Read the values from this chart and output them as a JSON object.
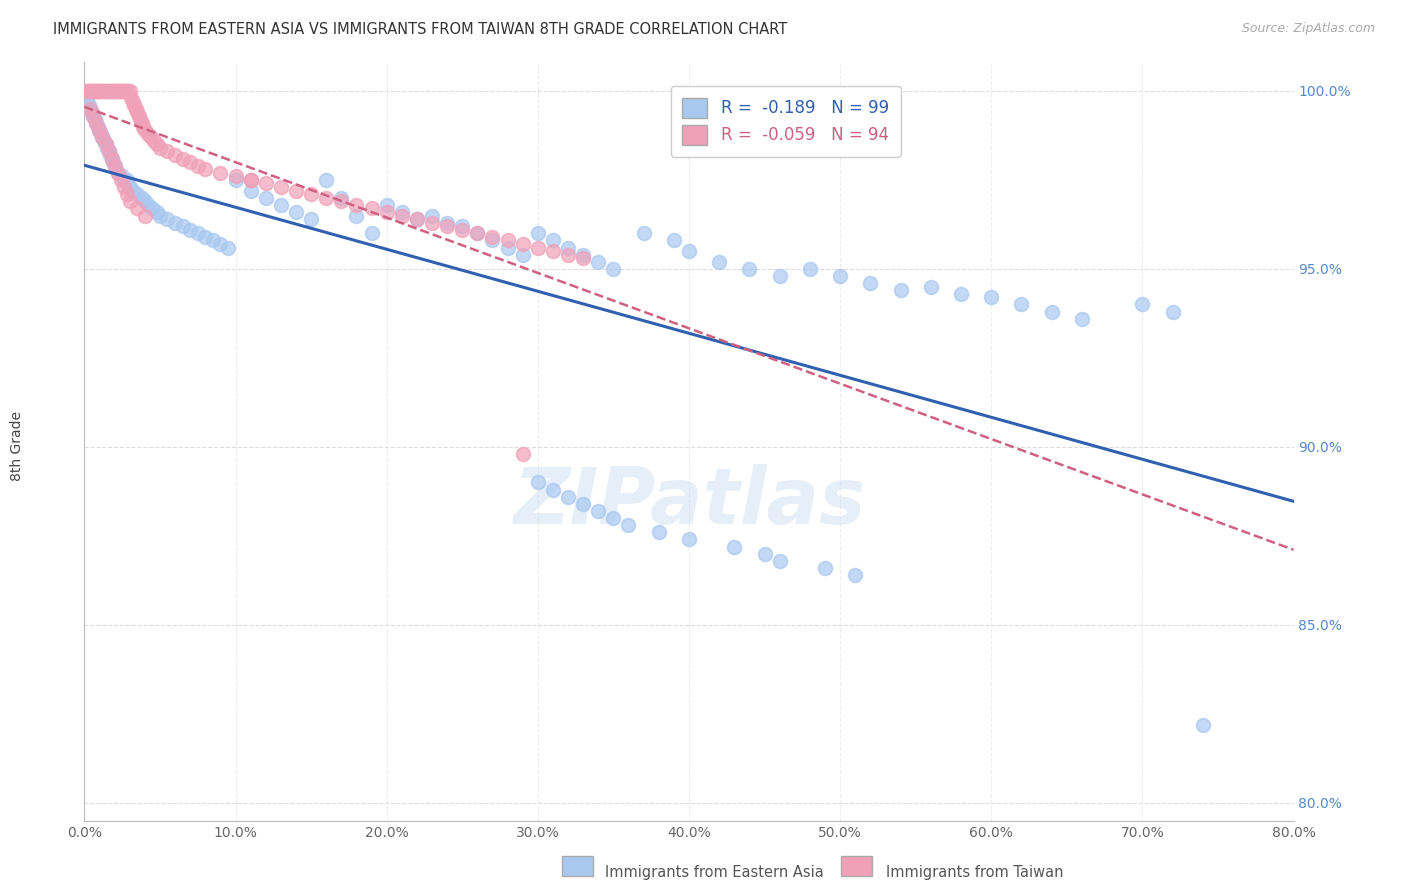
{
  "title": "IMMIGRANTS FROM EASTERN ASIA VS IMMIGRANTS FROM TAIWAN 8TH GRADE CORRELATION CHART",
  "source": "Source: ZipAtlas.com",
  "ylabel": "8th Grade",
  "legend_labels": [
    "Immigrants from Eastern Asia",
    "Immigrants from Taiwan"
  ],
  "r_eastern_asia": -0.189,
  "n_eastern_asia": 99,
  "r_taiwan": -0.059,
  "n_taiwan": 94,
  "xlim": [
    0.0,
    0.8
  ],
  "ylim": [
    0.795,
    1.008
  ],
  "yticks": [
    0.8,
    0.85,
    0.9,
    0.95,
    1.0
  ],
  "xticks": [
    0.0,
    0.1,
    0.2,
    0.3,
    0.4,
    0.5,
    0.6,
    0.7,
    0.8
  ],
  "blue_color": "#A8C8F0",
  "pink_color": "#F0A0B8",
  "trend_blue": "#3060B0",
  "trend_pink": "#D06080",
  "background": "#FFFFFF",
  "watermark": "ZIPatlas",
  "grid_color": "#DDDDDD",
  "blue_scatter_x": [
    0.002,
    0.003,
    0.004,
    0.005,
    0.006,
    0.007,
    0.008,
    0.009,
    0.01,
    0.011,
    0.012,
    0.013,
    0.014,
    0.015,
    0.016,
    0.017,
    0.018,
    0.019,
    0.02,
    0.022,
    0.025,
    0.028,
    0.03,
    0.032,
    0.035,
    0.038,
    0.04,
    0.042,
    0.045,
    0.048,
    0.05,
    0.055,
    0.06,
    0.065,
    0.07,
    0.075,
    0.08,
    0.085,
    0.09,
    0.095,
    0.1,
    0.11,
    0.12,
    0.13,
    0.14,
    0.15,
    0.16,
    0.17,
    0.18,
    0.19,
    0.2,
    0.21,
    0.22,
    0.23,
    0.24,
    0.25,
    0.26,
    0.27,
    0.28,
    0.29,
    0.3,
    0.31,
    0.32,
    0.33,
    0.34,
    0.35,
    0.37,
    0.39,
    0.4,
    0.42,
    0.44,
    0.46,
    0.48,
    0.5,
    0.52,
    0.54,
    0.56,
    0.58,
    0.6,
    0.62,
    0.64,
    0.66,
    0.7,
    0.72,
    0.3,
    0.31,
    0.32,
    0.33,
    0.34,
    0.35,
    0.36,
    0.38,
    0.4,
    0.43,
    0.45,
    0.46,
    0.49,
    0.51,
    0.74
  ],
  "blue_scatter_y": [
    0.998,
    0.996,
    0.995,
    0.994,
    0.993,
    0.992,
    0.991,
    0.99,
    0.989,
    0.988,
    0.987,
    0.986,
    0.985,
    0.984,
    0.983,
    0.982,
    0.981,
    0.98,
    0.979,
    0.977,
    0.976,
    0.975,
    0.973,
    0.972,
    0.971,
    0.97,
    0.969,
    0.968,
    0.967,
    0.966,
    0.965,
    0.964,
    0.963,
    0.962,
    0.961,
    0.96,
    0.959,
    0.958,
    0.957,
    0.956,
    0.975,
    0.972,
    0.97,
    0.968,
    0.966,
    0.964,
    0.975,
    0.97,
    0.965,
    0.96,
    0.968,
    0.966,
    0.964,
    0.965,
    0.963,
    0.962,
    0.96,
    0.958,
    0.956,
    0.954,
    0.96,
    0.958,
    0.956,
    0.954,
    0.952,
    0.95,
    0.96,
    0.958,
    0.955,
    0.952,
    0.95,
    0.948,
    0.95,
    0.948,
    0.946,
    0.944,
    0.945,
    0.943,
    0.942,
    0.94,
    0.938,
    0.936,
    0.94,
    0.938,
    0.89,
    0.888,
    0.886,
    0.884,
    0.882,
    0.88,
    0.878,
    0.876,
    0.874,
    0.872,
    0.87,
    0.868,
    0.866,
    0.864,
    0.822
  ],
  "pink_scatter_x": [
    0.001,
    0.002,
    0.003,
    0.004,
    0.005,
    0.006,
    0.007,
    0.008,
    0.009,
    0.01,
    0.011,
    0.012,
    0.013,
    0.014,
    0.015,
    0.016,
    0.017,
    0.018,
    0.019,
    0.02,
    0.021,
    0.022,
    0.023,
    0.024,
    0.025,
    0.026,
    0.027,
    0.028,
    0.029,
    0.03,
    0.031,
    0.032,
    0.033,
    0.034,
    0.035,
    0.036,
    0.037,
    0.038,
    0.039,
    0.04,
    0.042,
    0.044,
    0.046,
    0.048,
    0.05,
    0.055,
    0.06,
    0.065,
    0.07,
    0.075,
    0.08,
    0.09,
    0.1,
    0.11,
    0.12,
    0.13,
    0.14,
    0.15,
    0.16,
    0.17,
    0.18,
    0.19,
    0.2,
    0.21,
    0.22,
    0.23,
    0.24,
    0.25,
    0.26,
    0.27,
    0.28,
    0.29,
    0.3,
    0.31,
    0.32,
    0.33,
    0.004,
    0.006,
    0.008,
    0.01,
    0.012,
    0.014,
    0.016,
    0.018,
    0.02,
    0.022,
    0.024,
    0.026,
    0.028,
    0.03,
    0.035,
    0.04,
    0.11,
    0.29
  ],
  "pink_scatter_y": [
    1.0,
    1.0,
    1.0,
    1.0,
    1.0,
    1.0,
    1.0,
    1.0,
    1.0,
    1.0,
    1.0,
    1.0,
    1.0,
    1.0,
    1.0,
    1.0,
    1.0,
    1.0,
    1.0,
    1.0,
    1.0,
    1.0,
    1.0,
    1.0,
    1.0,
    1.0,
    1.0,
    1.0,
    1.0,
    1.0,
    0.998,
    0.997,
    0.996,
    0.995,
    0.994,
    0.993,
    0.992,
    0.991,
    0.99,
    0.989,
    0.988,
    0.987,
    0.986,
    0.985,
    0.984,
    0.983,
    0.982,
    0.981,
    0.98,
    0.979,
    0.978,
    0.977,
    0.976,
    0.975,
    0.974,
    0.973,
    0.972,
    0.971,
    0.97,
    0.969,
    0.968,
    0.967,
    0.966,
    0.965,
    0.964,
    0.963,
    0.962,
    0.961,
    0.96,
    0.959,
    0.958,
    0.957,
    0.956,
    0.955,
    0.954,
    0.953,
    0.995,
    0.993,
    0.991,
    0.989,
    0.987,
    0.985,
    0.983,
    0.981,
    0.979,
    0.977,
    0.975,
    0.973,
    0.971,
    0.969,
    0.967,
    0.965,
    0.975,
    0.898
  ]
}
